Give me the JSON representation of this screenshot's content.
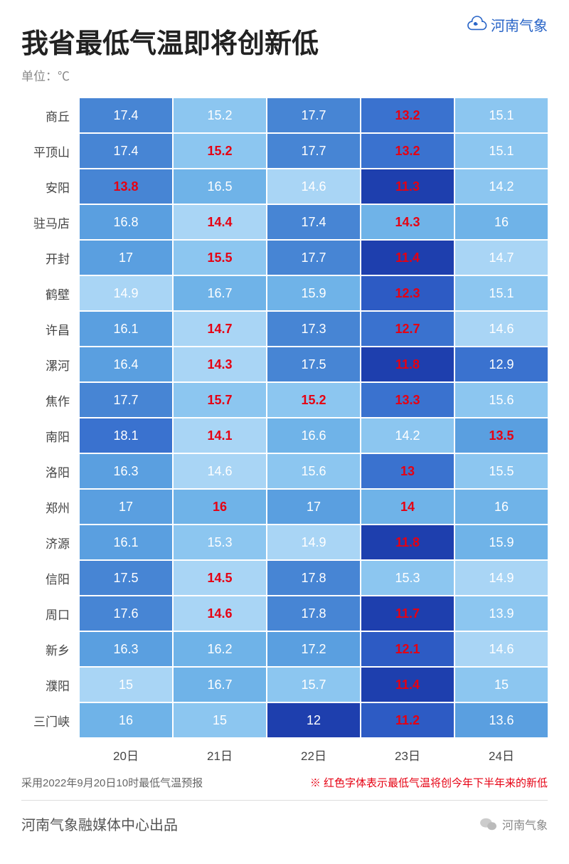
{
  "brand": "河南气象",
  "title": "我省最低气温即将创新低",
  "unit": "单位：℃",
  "columns": [
    "20日",
    "21日",
    "22日",
    "23日",
    "24日"
  ],
  "source": "采用2022年9月20日10时最低气温预报",
  "legend": "※ 红色字体表示最低气温将创今年下半年来的新低",
  "producer": "河南气象融媒体中心出品",
  "footer_brand": "河南气象",
  "color_scale": {
    "note": "lower temp = darker blue",
    "levels": [
      "#a9d5f5",
      "#8cc6f0",
      "#6fb3e8",
      "#5a9fe0",
      "#4785d4",
      "#3a72cf",
      "#2d5bc4",
      "#1e3fae"
    ]
  },
  "highlight_color": "#e60012",
  "rows": [
    {
      "city": "商丘",
      "cells": [
        {
          "v": "17.4",
          "bg": "#4785d4",
          "red": false
        },
        {
          "v": "15.2",
          "bg": "#8cc6f0",
          "red": false
        },
        {
          "v": "17.7",
          "bg": "#4785d4",
          "red": false
        },
        {
          "v": "13.2",
          "bg": "#3a72cf",
          "red": true
        },
        {
          "v": "15.1",
          "bg": "#8cc6f0",
          "red": false
        }
      ]
    },
    {
      "city": "平顶山",
      "cells": [
        {
          "v": "17.4",
          "bg": "#4785d4",
          "red": false
        },
        {
          "v": "15.2",
          "bg": "#8cc6f0",
          "red": true
        },
        {
          "v": "17.7",
          "bg": "#4785d4",
          "red": false
        },
        {
          "v": "13.2",
          "bg": "#3a72cf",
          "red": true
        },
        {
          "v": "15.1",
          "bg": "#8cc6f0",
          "red": false
        }
      ]
    },
    {
      "city": "安阳",
      "cells": [
        {
          "v": "13.8",
          "bg": "#4785d4",
          "red": true
        },
        {
          "v": "16.5",
          "bg": "#6fb3e8",
          "red": false
        },
        {
          "v": "14.6",
          "bg": "#a9d5f5",
          "red": false
        },
        {
          "v": "11.3",
          "bg": "#1e3fae",
          "red": true
        },
        {
          "v": "14.2",
          "bg": "#8cc6f0",
          "red": false
        }
      ]
    },
    {
      "city": "驻马店",
      "cells": [
        {
          "v": "16.8",
          "bg": "#5a9fe0",
          "red": false
        },
        {
          "v": "14.4",
          "bg": "#a9d5f5",
          "red": true
        },
        {
          "v": "17.4",
          "bg": "#4785d4",
          "red": false
        },
        {
          "v": "14.3",
          "bg": "#6fb3e8",
          "red": true
        },
        {
          "v": "16",
          "bg": "#6fb3e8",
          "red": false
        }
      ]
    },
    {
      "city": "开封",
      "cells": [
        {
          "v": "17",
          "bg": "#5a9fe0",
          "red": false
        },
        {
          "v": "15.5",
          "bg": "#8cc6f0",
          "red": true
        },
        {
          "v": "17.7",
          "bg": "#4785d4",
          "red": false
        },
        {
          "v": "11.4",
          "bg": "#1e3fae",
          "red": true
        },
        {
          "v": "14.7",
          "bg": "#a9d5f5",
          "red": false
        }
      ]
    },
    {
      "city": "鹤壁",
      "cells": [
        {
          "v": "14.9",
          "bg": "#a9d5f5",
          "red": false
        },
        {
          "v": "16.7",
          "bg": "#6fb3e8",
          "red": false
        },
        {
          "v": "15.9",
          "bg": "#6fb3e8",
          "red": false
        },
        {
          "v": "12.3",
          "bg": "#2d5bc4",
          "red": true
        },
        {
          "v": "15.1",
          "bg": "#8cc6f0",
          "red": false
        }
      ]
    },
    {
      "city": "许昌",
      "cells": [
        {
          "v": "16.1",
          "bg": "#5a9fe0",
          "red": false
        },
        {
          "v": "14.7",
          "bg": "#a9d5f5",
          "red": true
        },
        {
          "v": "17.3",
          "bg": "#4785d4",
          "red": false
        },
        {
          "v": "12.7",
          "bg": "#3a72cf",
          "red": true
        },
        {
          "v": "14.6",
          "bg": "#a9d5f5",
          "red": false
        }
      ]
    },
    {
      "city": "漯河",
      "cells": [
        {
          "v": "16.4",
          "bg": "#5a9fe0",
          "red": false
        },
        {
          "v": "14.3",
          "bg": "#a9d5f5",
          "red": true
        },
        {
          "v": "17.5",
          "bg": "#4785d4",
          "red": false
        },
        {
          "v": "11.8",
          "bg": "#1e3fae",
          "red": true
        },
        {
          "v": "12.9",
          "bg": "#3a72cf",
          "red": false
        }
      ]
    },
    {
      "city": "焦作",
      "cells": [
        {
          "v": "17.7",
          "bg": "#4785d4",
          "red": false
        },
        {
          "v": "15.7",
          "bg": "#8cc6f0",
          "red": true
        },
        {
          "v": "15.2",
          "bg": "#8cc6f0",
          "red": true
        },
        {
          "v": "13.3",
          "bg": "#3a72cf",
          "red": true
        },
        {
          "v": "15.6",
          "bg": "#8cc6f0",
          "red": false
        }
      ]
    },
    {
      "city": "南阳",
      "cells": [
        {
          "v": "18.1",
          "bg": "#3a72cf",
          "red": false
        },
        {
          "v": "14.1",
          "bg": "#a9d5f5",
          "red": true
        },
        {
          "v": "16.6",
          "bg": "#6fb3e8",
          "red": false
        },
        {
          "v": "14.2",
          "bg": "#8cc6f0",
          "red": false
        },
        {
          "v": "13.5",
          "bg": "#5a9fe0",
          "red": true
        }
      ]
    },
    {
      "city": "洛阳",
      "cells": [
        {
          "v": "16.3",
          "bg": "#5a9fe0",
          "red": false
        },
        {
          "v": "14.6",
          "bg": "#a9d5f5",
          "red": false
        },
        {
          "v": "15.6",
          "bg": "#8cc6f0",
          "red": false
        },
        {
          "v": "13",
          "bg": "#3a72cf",
          "red": true
        },
        {
          "v": "15.5",
          "bg": "#8cc6f0",
          "red": false
        }
      ]
    },
    {
      "city": "郑州",
      "cells": [
        {
          "v": "17",
          "bg": "#5a9fe0",
          "red": false
        },
        {
          "v": "16",
          "bg": "#6fb3e8",
          "red": true
        },
        {
          "v": "17",
          "bg": "#5a9fe0",
          "red": false
        },
        {
          "v": "14",
          "bg": "#6fb3e8",
          "red": true
        },
        {
          "v": "16",
          "bg": "#6fb3e8",
          "red": false
        }
      ]
    },
    {
      "city": "济源",
      "cells": [
        {
          "v": "16.1",
          "bg": "#5a9fe0",
          "red": false
        },
        {
          "v": "15.3",
          "bg": "#8cc6f0",
          "red": false
        },
        {
          "v": "14.9",
          "bg": "#a9d5f5",
          "red": false
        },
        {
          "v": "11.8",
          "bg": "#1e3fae",
          "red": true
        },
        {
          "v": "15.9",
          "bg": "#6fb3e8",
          "red": false
        }
      ]
    },
    {
      "city": "信阳",
      "cells": [
        {
          "v": "17.5",
          "bg": "#4785d4",
          "red": false
        },
        {
          "v": "14.5",
          "bg": "#a9d5f5",
          "red": true
        },
        {
          "v": "17.8",
          "bg": "#4785d4",
          "red": false
        },
        {
          "v": "15.3",
          "bg": "#8cc6f0",
          "red": false
        },
        {
          "v": "14.9",
          "bg": "#a9d5f5",
          "red": false
        }
      ]
    },
    {
      "city": "周口",
      "cells": [
        {
          "v": "17.6",
          "bg": "#4785d4",
          "red": false
        },
        {
          "v": "14.6",
          "bg": "#a9d5f5",
          "red": true
        },
        {
          "v": "17.8",
          "bg": "#4785d4",
          "red": false
        },
        {
          "v": "11.7",
          "bg": "#1e3fae",
          "red": true
        },
        {
          "v": "13.9",
          "bg": "#8cc6f0",
          "red": false
        }
      ]
    },
    {
      "city": "新乡",
      "cells": [
        {
          "v": "16.3",
          "bg": "#5a9fe0",
          "red": false
        },
        {
          "v": "16.2",
          "bg": "#6fb3e8",
          "red": false
        },
        {
          "v": "17.2",
          "bg": "#5a9fe0",
          "red": false
        },
        {
          "v": "12.1",
          "bg": "#2d5bc4",
          "red": true
        },
        {
          "v": "14.6",
          "bg": "#a9d5f5",
          "red": false
        }
      ]
    },
    {
      "city": "濮阳",
      "cells": [
        {
          "v": "15",
          "bg": "#a9d5f5",
          "red": false
        },
        {
          "v": "16.7",
          "bg": "#6fb3e8",
          "red": false
        },
        {
          "v": "15.7",
          "bg": "#8cc6f0",
          "red": false
        },
        {
          "v": "11.4",
          "bg": "#1e3fae",
          "red": true
        },
        {
          "v": "15",
          "bg": "#8cc6f0",
          "red": false
        }
      ]
    },
    {
      "city": "三门峡",
      "cells": [
        {
          "v": "16",
          "bg": "#6fb3e8",
          "red": false
        },
        {
          "v": "15",
          "bg": "#8cc6f0",
          "red": false
        },
        {
          "v": "12",
          "bg": "#1e3fae",
          "red": false
        },
        {
          "v": "11.2",
          "bg": "#2d5bc4",
          "red": true
        },
        {
          "v": "13.6",
          "bg": "#5a9fe0",
          "red": false
        }
      ]
    }
  ]
}
